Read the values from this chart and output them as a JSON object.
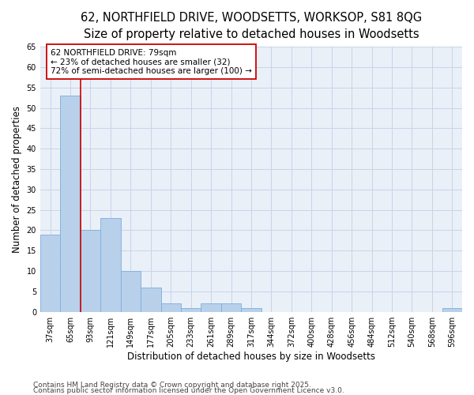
{
  "title_line1": "62, NORTHFIELD DRIVE, WOODSETTS, WORKSOP, S81 8QG",
  "title_line2": "Size of property relative to detached houses in Woodsetts",
  "xlabel": "Distribution of detached houses by size in Woodsetts",
  "ylabel": "Number of detached properties",
  "categories": [
    "37sqm",
    "65sqm",
    "93sqm",
    "121sqm",
    "149sqm",
    "177sqm",
    "205sqm",
    "233sqm",
    "261sqm",
    "289sqm",
    "317sqm",
    "344sqm",
    "372sqm",
    "400sqm",
    "428sqm",
    "456sqm",
    "484sqm",
    "512sqm",
    "540sqm",
    "568sqm",
    "596sqm"
  ],
  "values": [
    19,
    53,
    20,
    23,
    10,
    6,
    2,
    1,
    2,
    2,
    1,
    0,
    0,
    0,
    0,
    0,
    0,
    0,
    0,
    0,
    1
  ],
  "bar_color": "#b8d0ea",
  "bar_edge_color": "#7aafe0",
  "vline_x_idx": 1,
  "vline_color": "#cc0000",
  "annotation_text": "62 NORTHFIELD DRIVE: 79sqm\n← 23% of detached houses are smaller (32)\n72% of semi-detached houses are larger (100) →",
  "annotation_box_color": "#ffffff",
  "annotation_box_edge": "#cc0000",
  "ylim": [
    0,
    65
  ],
  "yticks": [
    0,
    5,
    10,
    15,
    20,
    25,
    30,
    35,
    40,
    45,
    50,
    55,
    60,
    65
  ],
  "grid_color": "#c8d4e8",
  "background_color": "#eaf0f8",
  "footer_line1": "Contains HM Land Registry data © Crown copyright and database right 2025.",
  "footer_line2": "Contains public sector information licensed under the Open Government Licence v3.0.",
  "title_fontsize": 10.5,
  "title2_fontsize": 9.5,
  "axis_label_fontsize": 8.5,
  "tick_fontsize": 7,
  "annot_fontsize": 7.5,
  "footer_fontsize": 6.5
}
